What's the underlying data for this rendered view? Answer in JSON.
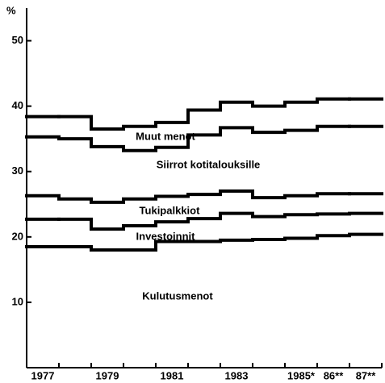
{
  "chart_data": {
    "type": "stacked-step",
    "y_label": "%",
    "categories": [
      "1977",
      null,
      "1979",
      null,
      "1981",
      null,
      "1983",
      null,
      "1985*",
      "86**",
      "87**"
    ],
    "series": [
      {
        "name": "Kulutusmenot",
        "color": "#000000",
        "values": [
          18.5,
          18.5,
          18.0,
          18.0,
          19.3,
          19.3,
          19.5,
          19.6,
          19.8,
          20.2,
          20.4
        ]
      },
      {
        "name": "Investoinnit",
        "color": "#000000",
        "values": [
          4.2,
          4.2,
          3.2,
          3.7,
          3.0,
          3.5,
          4.1,
          3.5,
          3.6,
          3.3,
          3.2
        ]
      },
      {
        "name": "Tukipalkkiot",
        "color": "#000000",
        "values": [
          3.6,
          3.1,
          4.1,
          4.1,
          3.9,
          3.7,
          3.4,
          2.9,
          2.9,
          3.1,
          3.0
        ]
      },
      {
        "name": "Siirrot kotitalouksille",
        "color": "#000000",
        "values": [
          9.0,
          9.2,
          8.5,
          7.4,
          7.5,
          9.1,
          9.7,
          10.0,
          10.0,
          10.3,
          10.3
        ]
      },
      {
        "name": "Muut menot",
        "color": "#000000",
        "values": [
          3.1,
          3.4,
          2.7,
          3.7,
          3.8,
          3.8,
          3.9,
          4.0,
          4.3,
          4.2,
          4.2
        ]
      }
    ],
    "ylim": [
      0,
      55
    ],
    "yticks": [
      10,
      20,
      30,
      40,
      50
    ],
    "grid": false
  }
}
